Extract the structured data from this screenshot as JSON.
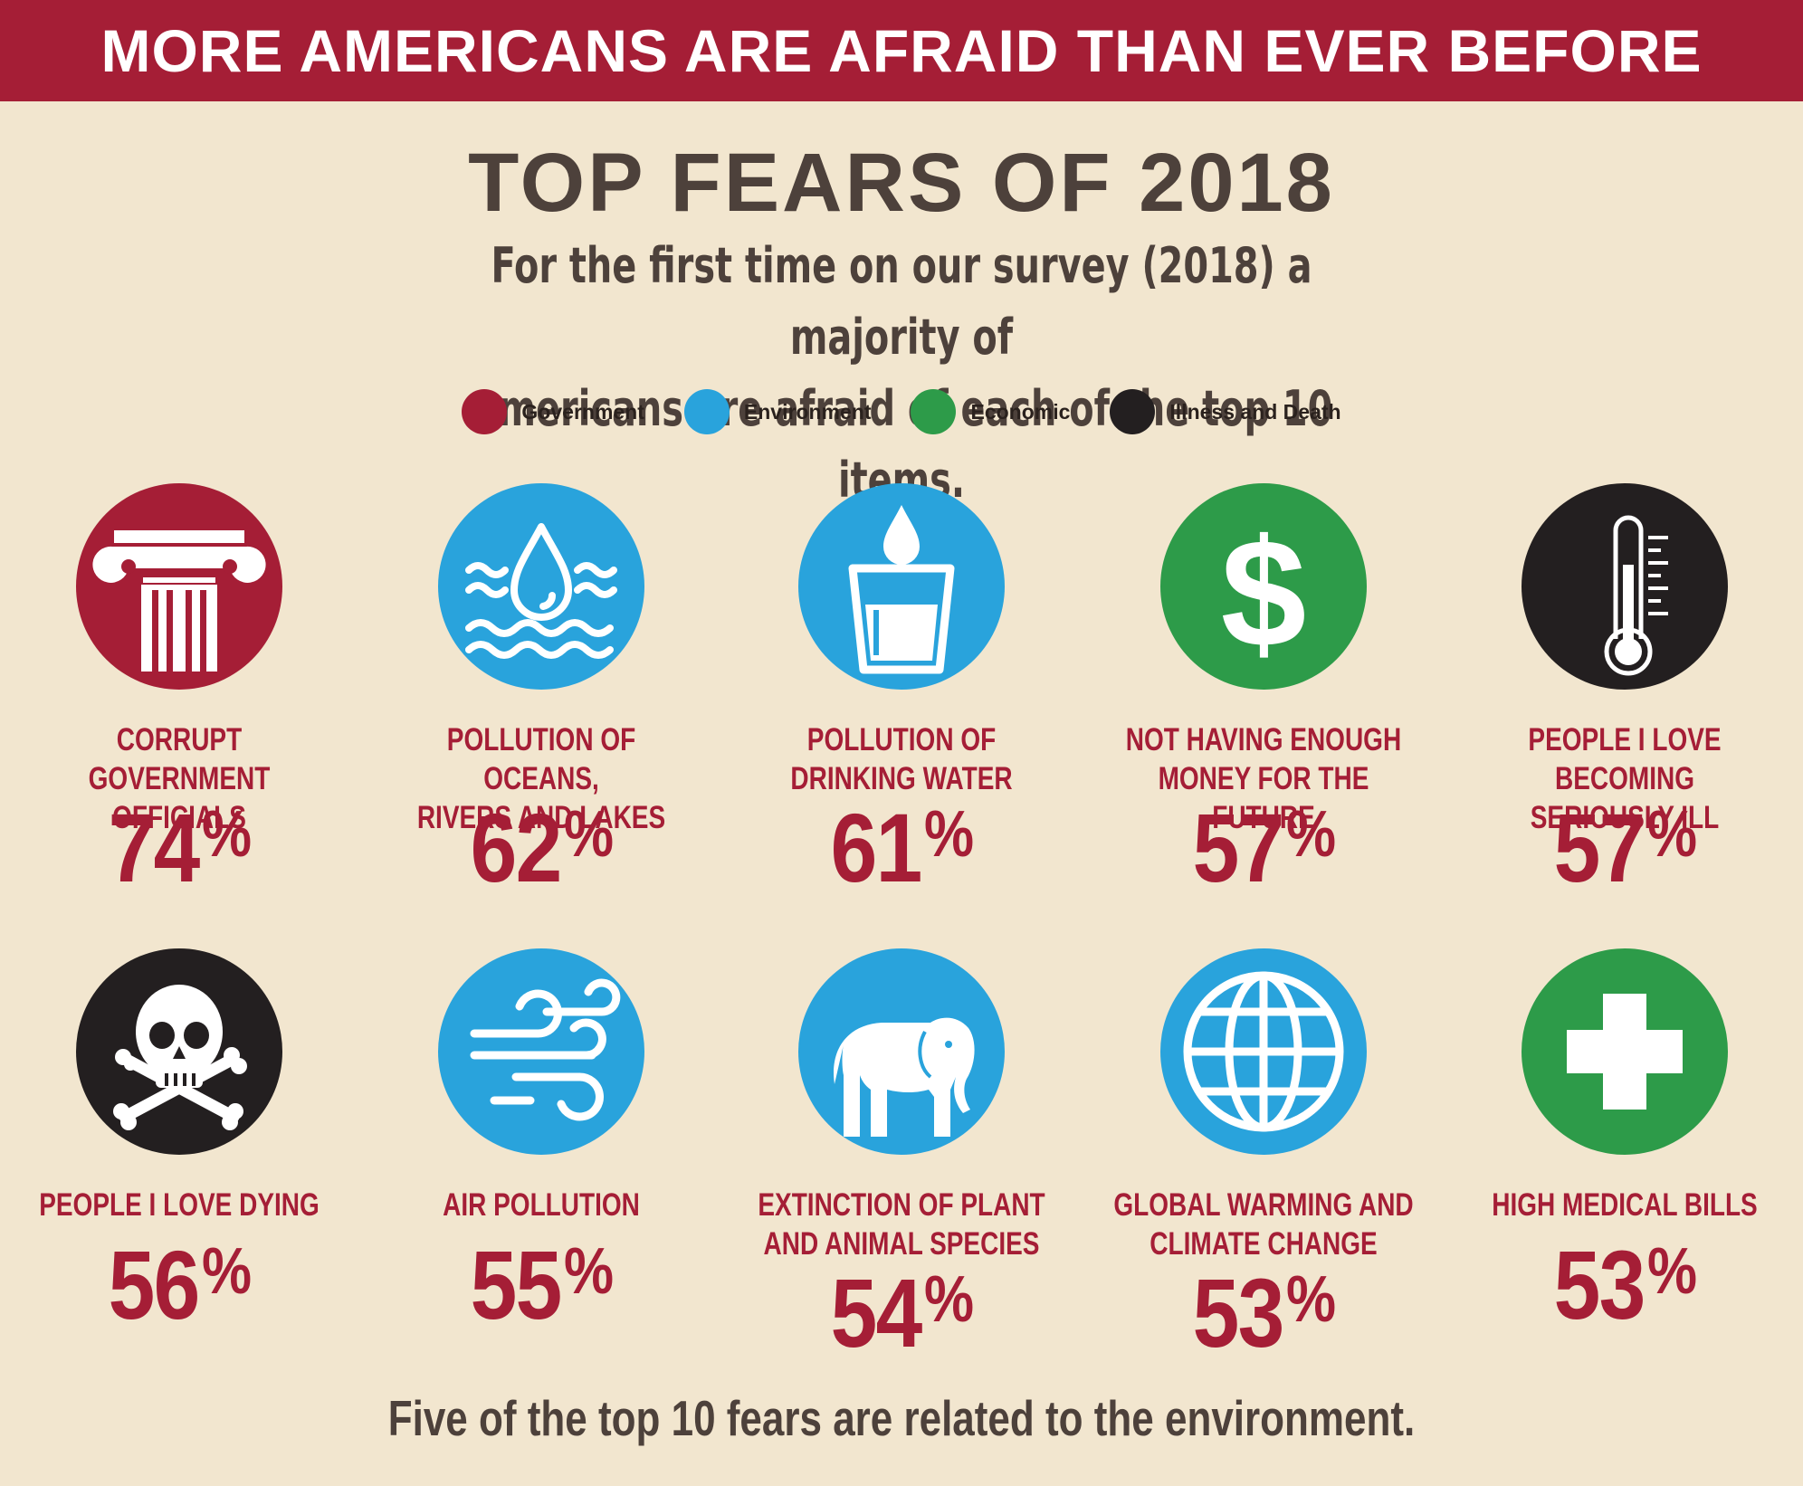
{
  "banner": "MORE AMERICANS ARE AFRAID THAN EVER BEFORE",
  "title": "TOP FEARS OF 2018",
  "subtitle_line1": "For the first time on our survey (2018) a majority of",
  "subtitle_line2": "Americans are afraid of each of the top 10 items.",
  "legend": [
    {
      "label": "Government",
      "color": "#a51e36"
    },
    {
      "label": "Environment",
      "color": "#29a3dc"
    },
    {
      "label": "Economic",
      "color": "#2d9b49"
    },
    {
      "label": "Illness and Death",
      "color": "#231f20"
    }
  ],
  "footer": "Five of the top 10 fears are related to the environment.",
  "chart_data": {
    "type": "table",
    "title": "TOP FEARS OF 2018",
    "unit": "%",
    "items": [
      {
        "line1": "CORRUPT GOVERNMENT",
        "line2": "OFFICIALS",
        "value": 74,
        "category": "Government",
        "icon": "column-icon"
      },
      {
        "line1": "POLLUTION OF OCEANS,",
        "line2": "RIVERS AND LAKES",
        "value": 62,
        "category": "Environment",
        "icon": "water-drop-waves-icon"
      },
      {
        "line1": "POLLUTION OF",
        "line2": "DRINKING WATER",
        "value": 61,
        "category": "Environment",
        "icon": "water-glass-icon"
      },
      {
        "line1": "NOT HAVING ENOUGH",
        "line2": "MONEY FOR THE FUTURE",
        "value": 57,
        "category": "Economic",
        "icon": "dollar-icon"
      },
      {
        "line1": "PEOPLE I LOVE BECOMING",
        "line2": "SERIOUSLY ILL",
        "value": 57,
        "category": "Illness and Death",
        "icon": "thermometer-icon"
      },
      {
        "line1": "PEOPLE I LOVE DYING",
        "line2": "",
        "value": 56,
        "category": "Illness and Death",
        "icon": "skull-crossbones-icon"
      },
      {
        "line1": "AIR POLLUTION",
        "line2": "",
        "value": 55,
        "category": "Environment",
        "icon": "wind-icon"
      },
      {
        "line1": "EXTINCTION OF PLANT",
        "line2": "AND ANIMAL SPECIES",
        "value": 54,
        "category": "Environment",
        "icon": "elephant-icon"
      },
      {
        "line1": "GLOBAL WARMING AND",
        "line2": "CLIMATE CHANGE",
        "value": 53,
        "category": "Environment",
        "icon": "globe-icon"
      },
      {
        "line1": "HIGH MEDICAL BILLS",
        "line2": "",
        "value": 53,
        "category": "Economic",
        "icon": "medical-cross-icon"
      }
    ]
  }
}
